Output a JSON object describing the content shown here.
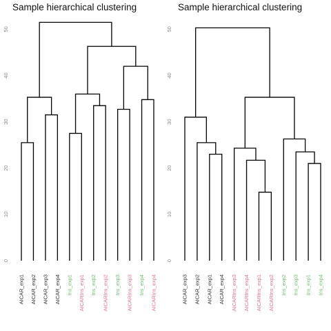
{
  "chart_data": [
    {
      "type": "dendrogram",
      "title": "Sample hierarchical clustering",
      "yticks": [
        0,
        10,
        20,
        30,
        40,
        50
      ],
      "ylim": [
        0,
        52
      ],
      "leaves": [
        {
          "label": "AICAR_exp1",
          "color": "#333333"
        },
        {
          "label": "AICAR_exp2",
          "color": "#333333"
        },
        {
          "label": "AICAR_exp3",
          "color": "#333333"
        },
        {
          "label": "AICAR_exp4",
          "color": "#333333"
        },
        {
          "label": "Ins_exp1",
          "color": "#6cc16c"
        },
        {
          "label": "AICARIns_exp1",
          "color": "#e8738a"
        },
        {
          "label": "Ins_exp2",
          "color": "#6cc16c"
        },
        {
          "label": "AICARIns_exp2",
          "color": "#e8738a"
        },
        {
          "label": "Ins_exp3",
          "color": "#6cc16c"
        },
        {
          "label": "AICARIns_exp3",
          "color": "#e8738a"
        },
        {
          "label": "Ins_exp4",
          "color": "#6cc16c"
        },
        {
          "label": "AICARIns_exp4",
          "color": "#e8738a"
        }
      ],
      "merges": [
        {
          "left": -1,
          "right": -2,
          "height": 25.5
        },
        {
          "left": -3,
          "right": -4,
          "height": 31.5
        },
        {
          "left": 1,
          "right": 2,
          "height": 35.3
        },
        {
          "left": -5,
          "right": -6,
          "height": 27.5
        },
        {
          "left": -7,
          "right": -8,
          "height": 33.5
        },
        {
          "left": 4,
          "right": 5,
          "height": 36.0
        },
        {
          "left": -9,
          "right": -10,
          "height": 32.7
        },
        {
          "left": -11,
          "right": -12,
          "height": 34.8
        },
        {
          "left": 7,
          "right": 8,
          "height": 42.0
        },
        {
          "left": 6,
          "right": 9,
          "height": 46.3
        },
        {
          "left": 3,
          "right": 10,
          "height": 51.5
        }
      ]
    },
    {
      "type": "dendrogram",
      "title": "Sample hierarchical clustering",
      "yticks": [
        0,
        10,
        20,
        30,
        40,
        50
      ],
      "ylim": [
        0,
        52
      ],
      "leaves": [
        {
          "label": "AICAR_exp3",
          "color": "#333333"
        },
        {
          "label": "AICAR_exp2",
          "color": "#333333"
        },
        {
          "label": "AICAR_exp1",
          "color": "#333333"
        },
        {
          "label": "AICAR_exp4",
          "color": "#333333"
        },
        {
          "label": "AICARIns_exp3",
          "color": "#e8738a"
        },
        {
          "label": "AICARIns_exp4",
          "color": "#e8738a"
        },
        {
          "label": "AICARIns_exp1",
          "color": "#e8738a"
        },
        {
          "label": "AICARIns_exp2",
          "color": "#e8738a"
        },
        {
          "label": "Ins_exp2",
          "color": "#6cc16c"
        },
        {
          "label": "Ins_exp3",
          "color": "#6cc16c"
        },
        {
          "label": "Ins_exp1",
          "color": "#6cc16c"
        },
        {
          "label": "Ins_exp4",
          "color": "#6cc16c"
        }
      ],
      "merges": [
        {
          "left": -3,
          "right": -4,
          "height": 23.0
        },
        {
          "left": -2,
          "right": 1,
          "height": 25.5
        },
        {
          "left": -1,
          "right": 2,
          "height": 31.0
        },
        {
          "left": -7,
          "right": -8,
          "height": 14.8
        },
        {
          "left": -6,
          "right": 4,
          "height": 21.7
        },
        {
          "left": -5,
          "right": 5,
          "height": 24.3
        },
        {
          "left": -11,
          "right": -12,
          "height": 21.0
        },
        {
          "left": -10,
          "right": 7,
          "height": 23.5
        },
        {
          "left": -9,
          "right": 8,
          "height": 26.3
        },
        {
          "left": 6,
          "right": 9,
          "height": 35.3
        },
        {
          "left": 3,
          "right": 10,
          "height": 50.3
        }
      ]
    }
  ]
}
